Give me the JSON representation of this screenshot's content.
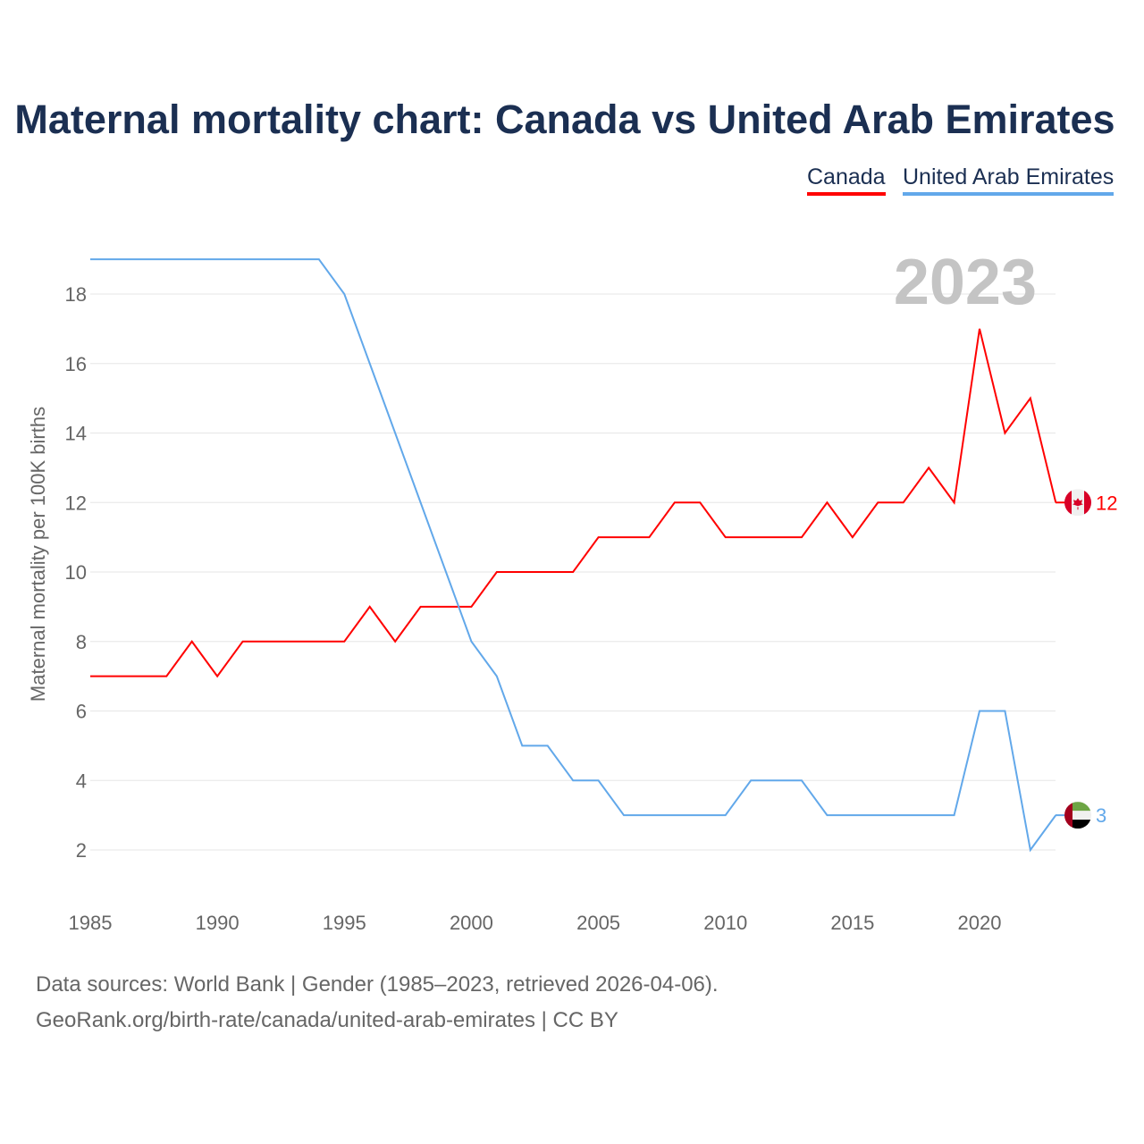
{
  "chart_data": {
    "type": "line",
    "title": "Maternal mortality chart: Canada vs United Arab Emirates",
    "ylabel": "Maternal mortality per 100K births",
    "xlabel": "",
    "year_label": "2023",
    "x": [
      1985,
      1986,
      1987,
      1988,
      1989,
      1990,
      1991,
      1992,
      1993,
      1994,
      1995,
      1996,
      1997,
      1998,
      1999,
      2000,
      2001,
      2002,
      2003,
      2004,
      2005,
      2006,
      2007,
      2008,
      2009,
      2010,
      2011,
      2012,
      2013,
      2014,
      2015,
      2016,
      2017,
      2018,
      2019,
      2020,
      2021,
      2022,
      2023
    ],
    "xlim": [
      1985,
      2023
    ],
    "ylim": [
      1,
      19.5
    ],
    "xticks": [
      "1985",
      "1990",
      "1995",
      "2000",
      "2005",
      "2010",
      "2015",
      "2020"
    ],
    "yticks": [
      "2",
      "4",
      "6",
      "8",
      "10",
      "12",
      "14",
      "16",
      "18"
    ],
    "grid": true,
    "legend_position": "top-right",
    "series": [
      {
        "name": "Canada",
        "color": "#ff0000",
        "end_label": "12",
        "values": [
          7,
          7,
          7,
          7,
          8,
          7,
          8,
          8,
          8,
          8,
          8,
          9,
          8,
          9,
          9,
          9,
          10,
          10,
          10,
          10,
          11,
          11,
          11,
          12,
          12,
          11,
          11,
          11,
          11,
          12,
          11,
          12,
          12,
          13,
          12,
          17,
          14,
          15,
          12
        ]
      },
      {
        "name": "United Arab Emirates",
        "color": "#62a8ea",
        "end_label": "3",
        "values": [
          19,
          19,
          19,
          19,
          19,
          19,
          19,
          19,
          19,
          19,
          18,
          16,
          14,
          12,
          10,
          8,
          7,
          5,
          5,
          4,
          4,
          3,
          3,
          3,
          3,
          3,
          4,
          4,
          4,
          3,
          3,
          3,
          3,
          3,
          3,
          6,
          6,
          2,
          3
        ]
      }
    ]
  },
  "footer": {
    "line1": "Data sources: World Bank | Gender (1985–2023, retrieved 2026-04-06).",
    "line2": "GeoRank.org/birth-rate/canada/united-arab-emirates | CC BY"
  }
}
